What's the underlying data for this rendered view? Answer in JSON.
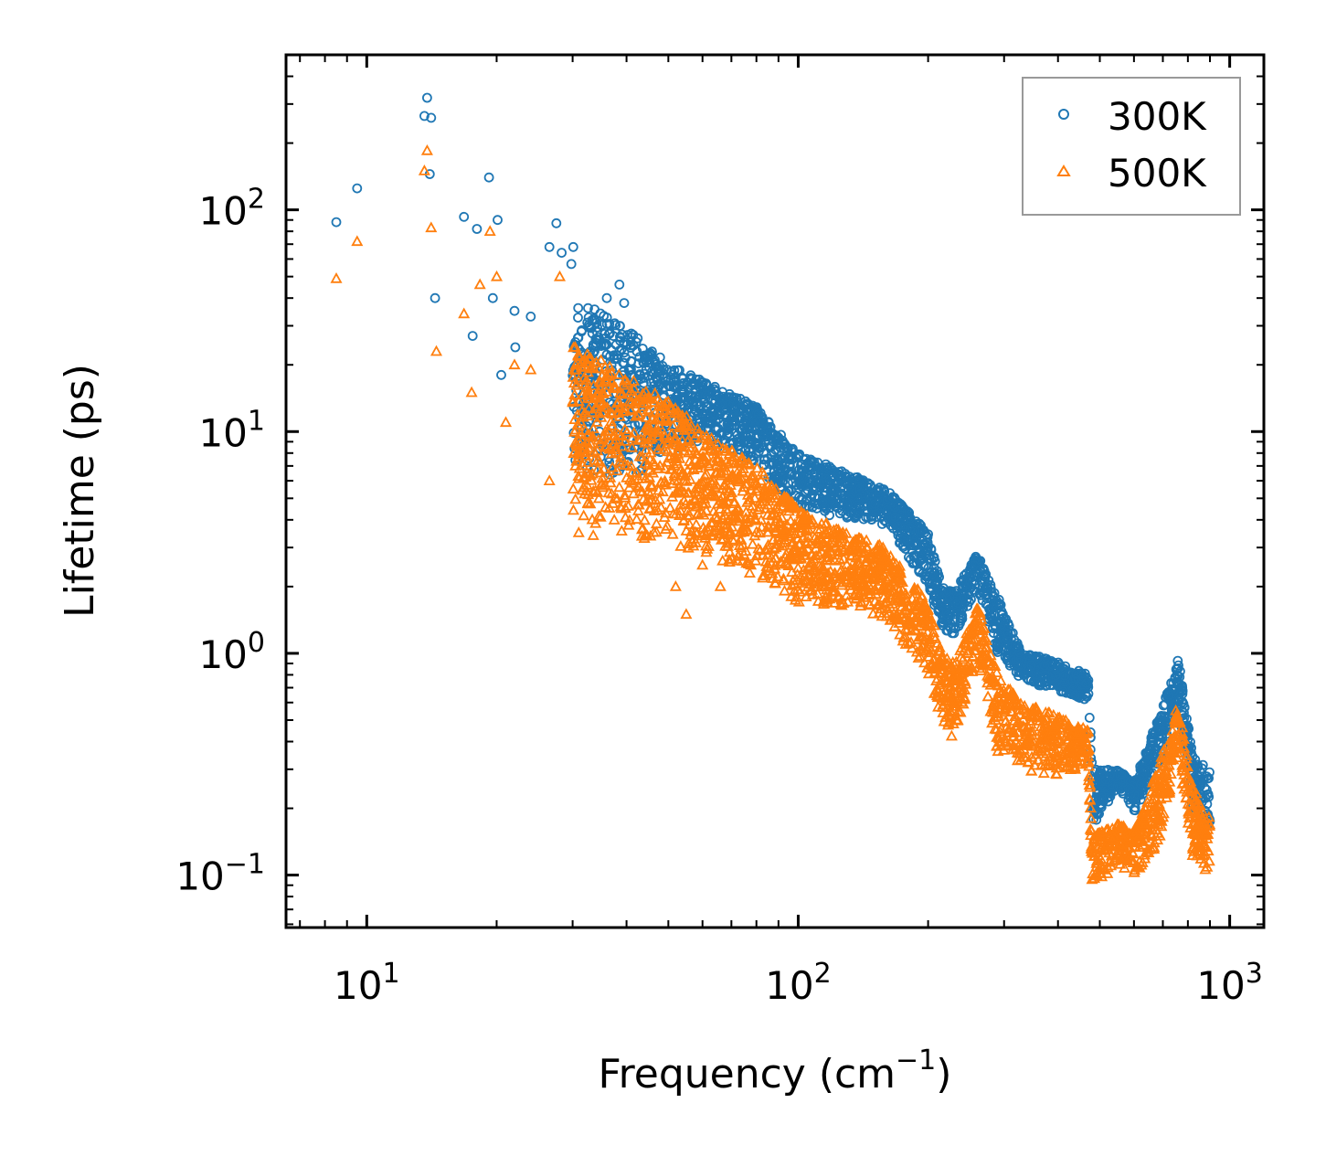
{
  "chart_data": {
    "type": "scatter",
    "title": "",
    "xlabel": "Frequency (cm",
    "xlabel_sup": "−1",
    "xlabel_end": ")",
    "ylabel": "Lifetime (ps)",
    "xscale": "log",
    "yscale": "log",
    "xlim": [
      6.5,
      1200
    ],
    "ylim": [
      0.058,
      500
    ],
    "x_ticks": [
      {
        "value": 10,
        "base": "10",
        "exp": "1"
      },
      {
        "value": 100,
        "base": "10",
        "exp": "2"
      },
      {
        "value": 1000,
        "base": "10",
        "exp": "3"
      }
    ],
    "y_ticks": [
      {
        "value": 0.1,
        "base": "10",
        "exp": "−1"
      },
      {
        "value": 1,
        "base": "10",
        "exp": "0"
      },
      {
        "value": 10,
        "base": "10",
        "exp": "1"
      },
      {
        "value": 100,
        "base": "10",
        "exp": "2"
      }
    ],
    "legend_position": "top-right",
    "series": [
      {
        "name": "300K",
        "marker": "circle-open",
        "color": "#1f77b4",
        "anchor_points": [
          [
            8.5,
            88
          ],
          [
            9.5,
            125
          ],
          [
            13.8,
            320
          ],
          [
            13.6,
            265
          ],
          [
            14.1,
            260
          ],
          [
            14.0,
            145
          ],
          [
            14.4,
            40
          ],
          [
            16.8,
            93
          ],
          [
            17.6,
            27
          ],
          [
            18.0,
            82
          ],
          [
            19.2,
            140
          ],
          [
            19.6,
            40
          ],
          [
            20.1,
            90
          ],
          [
            20.5,
            18
          ],
          [
            22.0,
            35
          ],
          [
            22.1,
            24
          ],
          [
            24.0,
            33
          ],
          [
            26.5,
            68
          ],
          [
            27.5,
            87
          ],
          [
            28.3,
            64
          ],
          [
            29.8,
            57
          ],
          [
            30.1,
            68
          ],
          [
            34.0,
            18
          ],
          [
            36.0,
            40
          ],
          [
            38.5,
            46
          ],
          [
            39.5,
            38
          ]
        ],
        "band": [
          [
            30,
            7,
            40
          ],
          [
            40,
            6,
            30
          ],
          [
            50,
            8,
            20
          ],
          [
            60,
            9,
            17
          ],
          [
            80,
            7,
            13
          ],
          [
            100,
            4.5,
            8
          ],
          [
            130,
            4.0,
            6.5
          ],
          [
            160,
            3.8,
            5.5
          ],
          [
            200,
            2.0,
            3.5
          ],
          [
            215,
            1.3,
            2.0
          ],
          [
            230,
            1.2,
            1.9
          ],
          [
            260,
            2.0,
            2.8
          ],
          [
            290,
            1.0,
            1.8
          ],
          [
            330,
            0.75,
            1.0
          ],
          [
            380,
            0.7,
            0.95
          ],
          [
            470,
            0.6,
            0.8
          ],
          [
            480,
            0.16,
            0.3
          ],
          [
            550,
            0.25,
            0.3
          ],
          [
            600,
            0.19,
            0.26
          ],
          [
            680,
            0.3,
            0.5
          ],
          [
            760,
            0.6,
            0.95
          ],
          [
            820,
            0.2,
            0.35
          ],
          [
            900,
            0.15,
            0.3
          ]
        ]
      },
      {
        "name": "500K",
        "marker": "triangle-open",
        "color": "#ff7f0e",
        "anchor_points": [
          [
            8.5,
            49
          ],
          [
            9.5,
            72
          ],
          [
            13.6,
            150
          ],
          [
            13.8,
            185
          ],
          [
            14.1,
            83
          ],
          [
            14.5,
            23
          ],
          [
            16.8,
            34
          ],
          [
            17.5,
            15
          ],
          [
            18.3,
            46
          ],
          [
            19.3,
            80
          ],
          [
            20.0,
            50
          ],
          [
            21.0,
            11
          ],
          [
            22.0,
            20
          ],
          [
            24.0,
            19
          ],
          [
            26.5,
            6
          ],
          [
            28.0,
            50
          ],
          [
            31.0,
            3.5
          ],
          [
            33.5,
            3.4
          ],
          [
            44,
            3.3
          ],
          [
            52,
            2.0
          ],
          [
            55,
            1.5
          ],
          [
            60,
            2.5
          ],
          [
            66,
            2.0
          ]
        ],
        "band": [
          [
            30,
            4,
            25
          ],
          [
            40,
            3.5,
            18
          ],
          [
            50,
            3,
            14
          ],
          [
            60,
            2.8,
            10
          ],
          [
            80,
            2.2,
            7
          ],
          [
            100,
            1.7,
            4.5
          ],
          [
            130,
            1.6,
            3.5
          ],
          [
            160,
            1.4,
            3.0
          ],
          [
            200,
            0.8,
            1.7
          ],
          [
            215,
            0.5,
            1.0
          ],
          [
            230,
            0.4,
            0.9
          ],
          [
            260,
            1.0,
            1.7
          ],
          [
            290,
            0.35,
            0.8
          ],
          [
            330,
            0.3,
            0.6
          ],
          [
            380,
            0.28,
            0.55
          ],
          [
            470,
            0.3,
            0.45
          ],
          [
            480,
            0.09,
            0.15
          ],
          [
            550,
            0.11,
            0.17
          ],
          [
            600,
            0.1,
            0.16
          ],
          [
            680,
            0.13,
            0.3
          ],
          [
            760,
            0.35,
            0.6
          ],
          [
            820,
            0.12,
            0.25
          ],
          [
            900,
            0.1,
            0.18
          ]
        ]
      }
    ]
  }
}
